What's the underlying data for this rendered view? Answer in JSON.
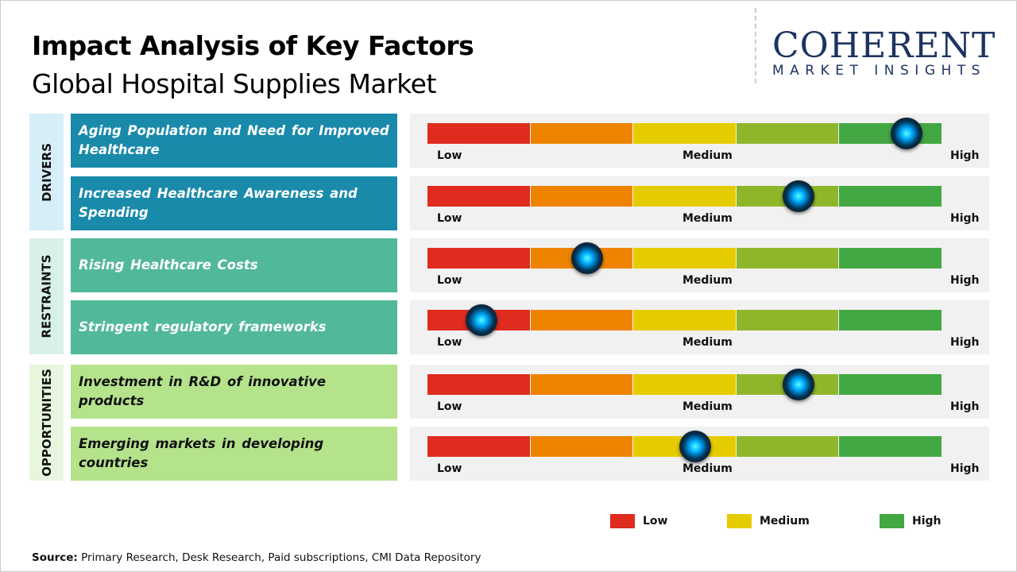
{
  "header": {
    "title": "Impact Analysis of Key Factors",
    "subtitle": "Global Hospital Supplies Market"
  },
  "logo": {
    "name": "COHERENT",
    "tagline": "MARKET INSIGHTS"
  },
  "colors": {
    "segments": [
      "#e02b1f",
      "#ee8300",
      "#e5cc00",
      "#8fb62a",
      "#43a843"
    ],
    "drivers": "#1a8aab",
    "restraints": "#52b89a",
    "opportunities": "#b5e38c"
  },
  "categories": [
    {
      "label": "DRIVERS"
    },
    {
      "label": "RESTRAINTS"
    },
    {
      "label": "OPPORTUNITIES"
    }
  ],
  "scale_labels": {
    "low": "Low",
    "medium": "Medium",
    "high": "High"
  },
  "chart_data": {
    "type": "gauge",
    "scale": [
      "Low",
      "Medium",
      "High"
    ],
    "range": [
      0,
      1
    ],
    "factors": [
      {
        "category": "DRIVERS",
        "label": "Aging Population and Need for Improved Healthcare",
        "value": 0.93
      },
      {
        "category": "DRIVERS",
        "label": "Increased Healthcare Awareness and Spending",
        "value": 0.72
      },
      {
        "category": "RESTRAINTS",
        "label": "Rising Healthcare Costs",
        "value": 0.31
      },
      {
        "category": "RESTRAINTS",
        "label": "Stringent regulatory frameworks",
        "value": 0.105
      },
      {
        "category": "OPPORTUNITIES",
        "label": "Investment in R&D of innovative products",
        "value": 0.72
      },
      {
        "category": "OPPORTUNITIES",
        "label": "Emerging markets in developing countries",
        "value": 0.52
      }
    ]
  },
  "legend": [
    {
      "label": "Low",
      "color": "#e02b1f"
    },
    {
      "label": "Medium",
      "color": "#e5cc00"
    },
    {
      "label": "High",
      "color": "#43a843"
    }
  ],
  "source": {
    "prefix": "Source:",
    "text": " Primary Research, Desk Research, Paid subscriptions, CMI Data Repository"
  }
}
